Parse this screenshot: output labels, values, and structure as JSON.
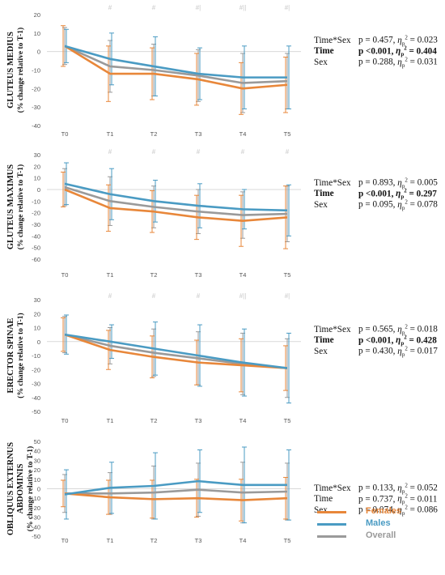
{
  "colors": {
    "females": "#E8873A",
    "males": "#4A9BC3",
    "overall": "#9A9A9A",
    "marker": "#C8C8C8"
  },
  "legend": [
    {
      "key": "females",
      "label": "Females"
    },
    {
      "key": "males",
      "label": "Males"
    },
    {
      "key": "overall",
      "label": "Overall"
    }
  ],
  "chart_data": [
    {
      "type": "line",
      "ylabel_main": "GLUTEUS MEDIUS",
      "ylabel_sub": "(% change relative to T-1)",
      "categories": [
        "T0",
        "T1",
        "T2",
        "T3",
        "T4",
        "T5"
      ],
      "ylim": [
        -40,
        20
      ],
      "yticks": [
        20,
        10,
        0,
        -10,
        -20,
        -30,
        -40
      ],
      "markers": [
        "",
        "#",
        "#",
        "#|",
        "#||",
        "#|"
      ],
      "series": [
        {
          "name": "Females",
          "key": "females",
          "values": [
            3,
            -12,
            -12,
            -15,
            -20,
            -18
          ],
          "errors": [
            11,
            15,
            14,
            14,
            14,
            15
          ]
        },
        {
          "name": "Males",
          "key": "males",
          "values": [
            3,
            -4,
            -8,
            -12,
            -14,
            -14
          ],
          "errors": [
            9,
            14,
            16,
            14,
            17,
            17
          ]
        },
        {
          "name": "Overall",
          "key": "overall",
          "values": [
            3,
            -8,
            -10,
            -13,
            -17,
            -16
          ],
          "errors": [
            10,
            14,
            14,
            14,
            16,
            15
          ]
        }
      ],
      "stats": [
        {
          "label": "Time*Sex",
          "p": "p = 0.457,",
          "eta_val": "= 0.023",
          "bold": false
        },
        {
          "label": "Time",
          "p": "p <0.001,",
          "eta_val": "= 0.404",
          "bold": true
        },
        {
          "label": "Sex",
          "p": "p = 0.288,",
          "eta_val": "= 0.031",
          "bold": false
        }
      ]
    },
    {
      "type": "line",
      "ylabel_main": "GLUTEUS MAXIMUS",
      "ylabel_sub": "(% change relative to T-1)",
      "categories": [
        "T0",
        "T1",
        "T2",
        "T3",
        "T4",
        "T5"
      ],
      "ylim": [
        -60,
        30
      ],
      "yticks": [
        30,
        20,
        10,
        0,
        -10,
        -20,
        -30,
        -40,
        -50,
        -60
      ],
      "markers": [
        "",
        "#",
        "#",
        "#",
        "#",
        "#"
      ],
      "series": [
        {
          "name": "Females",
          "key": "females",
          "values": [
            0,
            -16,
            -19,
            -24,
            -27,
            -24
          ],
          "errors": [
            15,
            20,
            18,
            19,
            22,
            27
          ]
        },
        {
          "name": "Males",
          "key": "males",
          "values": [
            5,
            -4,
            -10,
            -14,
            -17,
            -18
          ],
          "errors": [
            18,
            22,
            18,
            19,
            17,
            22
          ]
        },
        {
          "name": "Overall",
          "key": "overall",
          "values": [
            2,
            -10,
            -15,
            -19,
            -22,
            -21
          ],
          "errors": [
            16,
            21,
            18,
            19,
            20,
            24
          ]
        }
      ],
      "stats": [
        {
          "label": "Time*Sex",
          "p": "p = 0.893,",
          "eta_val": "= 0.005",
          "bold": false
        },
        {
          "label": "Time",
          "p": "p <0.001,",
          "eta_val": "= 0.297",
          "bold": true
        },
        {
          "label": "Sex",
          "p": "p = 0.095,",
          "eta_val": "= 0.078",
          "bold": false
        }
      ]
    },
    {
      "type": "line",
      "ylabel_main": "ERECTOR SPINAE",
      "ylabel_sub": "(% change relative to T-1)",
      "categories": [
        "T0",
        "T1",
        "T2",
        "T3",
        "T4",
        "T5"
      ],
      "ylim": [
        -50,
        30
      ],
      "yticks": [
        30,
        20,
        10,
        0,
        -10,
        -20,
        -30,
        -40,
        -50
      ],
      "markers": [
        "",
        "#",
        "#",
        "#",
        "#||",
        "#|"
      ],
      "series": [
        {
          "name": "Females",
          "key": "females",
          "values": [
            5,
            -6,
            -11,
            -15,
            -17,
            -19
          ],
          "errors": [
            12,
            14,
            15,
            16,
            19,
            16
          ]
        },
        {
          "name": "Males",
          "key": "males",
          "values": [
            5,
            0,
            -5,
            -10,
            -15,
            -19
          ],
          "errors": [
            14,
            12,
            19,
            22,
            24,
            25
          ]
        },
        {
          "name": "Overall",
          "key": "overall",
          "values": [
            5,
            -3,
            -8,
            -12,
            -16,
            -19
          ],
          "errors": [
            13,
            13,
            17,
            19,
            22,
            21
          ]
        }
      ],
      "stats": [
        {
          "label": "Time*Sex",
          "p": "p = 0.565,",
          "eta_val": "= 0.018",
          "bold": false
        },
        {
          "label": "Time",
          "p": "p <0.001,",
          "eta_val": "= 0.428",
          "bold": true
        },
        {
          "label": "Sex",
          "p": "p = 0.430,",
          "eta_val": "= 0.017",
          "bold": false
        }
      ]
    },
    {
      "type": "line",
      "ylabel_main": "OBLIQUUS EXTERNUS ABDOMINIS",
      "ylabel_sub": "(% change relative to T-1)",
      "categories": [
        "T0",
        "T1",
        "T2",
        "T3",
        "T4",
        "T5"
      ],
      "ylim": [
        -50,
        50
      ],
      "yticks": [
        50,
        40,
        30,
        20,
        10,
        0,
        -10,
        -20,
        -30,
        -40,
        -50
      ],
      "markers": [
        "",
        "",
        "",
        "",
        "",
        ""
      ],
      "series": [
        {
          "name": "Females",
          "key": "females",
          "values": [
            -5,
            -9,
            -11,
            -10,
            -12,
            -10
          ],
          "errors": [
            14,
            18,
            20,
            20,
            22,
            22
          ]
        },
        {
          "name": "Males",
          "key": "males",
          "values": [
            -6,
            1,
            3,
            8,
            4,
            4
          ],
          "errors": [
            26,
            27,
            35,
            33,
            40,
            37
          ]
        },
        {
          "name": "Overall",
          "key": "overall",
          "values": [
            -5,
            -5,
            -4,
            -1,
            -4,
            -3
          ],
          "errors": [
            20,
            22,
            28,
            28,
            32,
            30
          ]
        }
      ],
      "stats": [
        {
          "label": "Time*Sex",
          "p": "p = 0.133,",
          "eta_val": "= 0.052",
          "bold": false
        },
        {
          "label": "Time",
          "p": "p = 0.737,",
          "eta_val": "= 0.011",
          "bold": false
        },
        {
          "label": "Sex",
          "p": "p = 0.074,",
          "eta_val": "= 0.086",
          "bold": false
        }
      ]
    }
  ]
}
